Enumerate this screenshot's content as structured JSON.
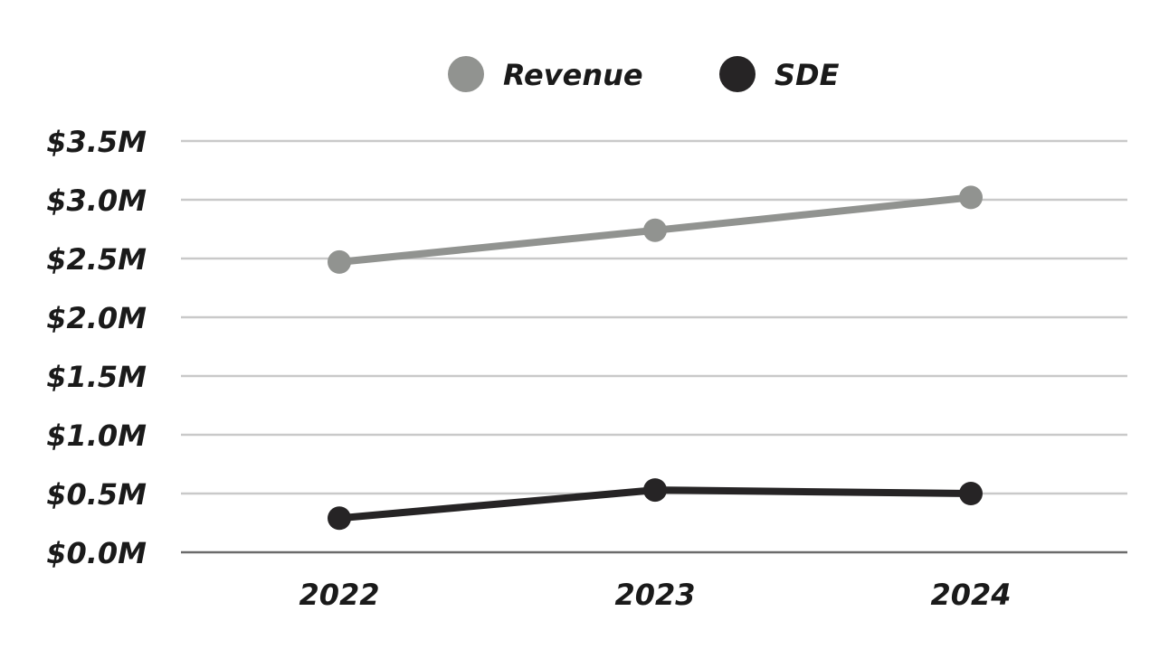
{
  "chart_data": {
    "type": "line",
    "categories": [
      "2022",
      "2023",
      "2024"
    ],
    "series": [
      {
        "name": "Revenue",
        "values": [
          2.47,
          2.74,
          3.02
        ],
        "color": "#919390"
      },
      {
        "name": "SDE",
        "values": [
          0.29,
          0.53,
          0.5
        ],
        "color": "#262425"
      }
    ],
    "yticks": [
      "$0.0M",
      "$0.5M",
      "$1.0M",
      "$1.5M",
      "$2.0M",
      "$2.5M",
      "$3.0M",
      "$3.5M"
    ],
    "ylim": [
      0,
      3.5
    ],
    "grid": true,
    "legend_position": "top-center",
    "gridline_color": "#c9c9c9",
    "baseline_color": "#6b6b6b"
  }
}
